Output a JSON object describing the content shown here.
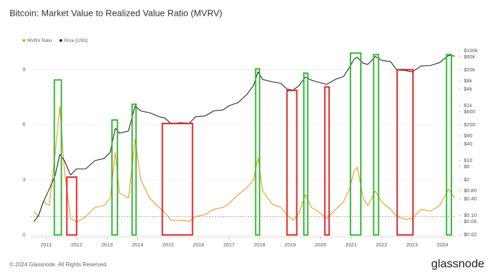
{
  "chart_data": {
    "type": "line",
    "title": "Bitcoin: Market Value to Realized Value Ratio (MVRV)",
    "x": [
      2010.6,
      2010.75,
      2010.9,
      2011.1,
      2011.3,
      2011.45,
      2011.6,
      2011.8,
      2012.0,
      2012.3,
      2012.6,
      2012.9,
      2013.1,
      2013.27,
      2013.4,
      2013.7,
      2013.92,
      2014.1,
      2014.4,
      2014.7,
      2014.9,
      2015.1,
      2015.4,
      2015.7,
      2015.9,
      2016.2,
      2016.5,
      2016.8,
      2017.0,
      2017.3,
      2017.6,
      2017.8,
      2017.95,
      2018.1,
      2018.4,
      2018.7,
      2018.9,
      2019.1,
      2019.3,
      2019.5,
      2019.7,
      2019.9,
      2020.2,
      2020.5,
      2020.75,
      2020.95,
      2021.1,
      2021.2,
      2021.4,
      2021.55,
      2021.8,
      2022.0,
      2022.3,
      2022.5,
      2022.8,
      2023.0,
      2023.3,
      2023.6,
      2023.9,
      2024.2,
      2024.4
    ],
    "series": [
      {
        "name": "MVRV Ratio",
        "color": "#f7931a",
        "axis": "y",
        "values": [
          1.3,
          1.0,
          1.8,
          1.6,
          4.5,
          7.0,
          3.5,
          0.9,
          0.7,
          1.0,
          1.5,
          1.6,
          2.0,
          4.5,
          2.3,
          2.0,
          5.2,
          3.0,
          2.0,
          1.5,
          1.2,
          0.8,
          0.8,
          0.75,
          1.0,
          1.1,
          1.4,
          1.5,
          1.7,
          2.2,
          2.6,
          3.0,
          4.2,
          2.4,
          1.7,
          1.5,
          1.1,
          0.8,
          1.2,
          2.2,
          1.5,
          1.3,
          0.9,
          1.4,
          1.8,
          2.5,
          3.5,
          3.7,
          2.0,
          1.6,
          2.4,
          1.8,
          1.4,
          1.0,
          0.85,
          0.9,
          1.4,
          1.3,
          1.6,
          2.5,
          2.0
        ]
      },
      {
        "name": "Price [USD]",
        "color": "#222222",
        "axis": "y2",
        "values": [
          0.06,
          0.1,
          0.3,
          0.9,
          3,
          17,
          10,
          3,
          5,
          5,
          10,
          12,
          20,
          150,
          100,
          120,
          1000,
          650,
          550,
          400,
          350,
          220,
          240,
          230,
          400,
          420,
          650,
          700,
          1000,
          1300,
          2700,
          5500,
          17000,
          9000,
          7500,
          6500,
          4000,
          3700,
          5500,
          11000,
          8500,
          7300,
          6000,
          9200,
          11500,
          25000,
          50000,
          58000,
          35000,
          32000,
          62000,
          45000,
          40000,
          20000,
          19000,
          17000,
          28000,
          29000,
          37000,
          68000,
          64000
        ]
      }
    ],
    "xlim": [
      2010.5,
      2024.45
    ],
    "xticks": [
      2011,
      2012,
      2013,
      2014,
      2015,
      2016,
      2017,
      2018,
      2019,
      2020,
      2021,
      2022,
      2023,
      2024
    ],
    "ylim": [
      -0.1,
      10.25
    ],
    "yticks": [
      0,
      3,
      6,
      9
    ],
    "y2lim": [
      0.0168,
      141000
    ],
    "y2log": true,
    "y2ticks": [
      {
        "value": 100000,
        "label": "$100k"
      },
      {
        "value": 60000,
        "label": "$60k"
      },
      {
        "value": 20000,
        "label": "$20k"
      },
      {
        "value": 8000,
        "label": "$8k"
      },
      {
        "value": 4000,
        "label": "$4k"
      },
      {
        "value": 1000,
        "label": "$1k"
      },
      {
        "value": 600,
        "label": "$600"
      },
      {
        "value": 200,
        "label": "$200"
      },
      {
        "value": 80,
        "label": "$80"
      },
      {
        "value": 40,
        "label": "$40"
      },
      {
        "value": 10,
        "label": "$10"
      },
      {
        "value": 6,
        "label": "$6"
      },
      {
        "value": 2,
        "label": "$2"
      },
      {
        "value": 0.8,
        "label": "$0.80"
      },
      {
        "value": 0.4,
        "label": "$0.40"
      },
      {
        "value": 0.1,
        "label": "$0.10"
      },
      {
        "value": 0.06,
        "label": "$0.06"
      },
      {
        "value": 0.02,
        "label": "$0.02"
      }
    ],
    "grid": true,
    "reference_line": 1,
    "highlights": [
      {
        "x": [
          2011.27,
          2011.5
        ],
        "y": [
          0,
          8.44
        ],
        "color": "#2eb82e"
      },
      {
        "x": [
          2011.68,
          2012.0
        ],
        "y": [
          0,
          3.15
        ],
        "color": "#e02020"
      },
      {
        "x": [
          2013.16,
          2013.34
        ],
        "y": [
          0,
          6.26
        ],
        "color": "#2eb82e"
      },
      {
        "x": [
          2013.82,
          2013.95
        ],
        "y": [
          0,
          7.12
        ],
        "color": "#2eb82e"
      },
      {
        "x": [
          2014.81,
          2015.8
        ],
        "y": [
          0,
          6.07
        ],
        "color": "#e02020"
      },
      {
        "x": [
          2017.87,
          2018.0
        ],
        "y": [
          0,
          9.04
        ],
        "color": "#2eb82e"
      },
      {
        "x": [
          2018.9,
          2019.22
        ],
        "y": [
          0,
          7.87
        ],
        "color": "#e02020"
      },
      {
        "x": [
          2019.45,
          2019.58
        ],
        "y": [
          0,
          8.81
        ],
        "color": "#2eb82e"
      },
      {
        "x": [
          2020.14,
          2020.28
        ],
        "y": [
          0,
          8.06
        ],
        "color": "#e02020"
      },
      {
        "x": [
          2020.98,
          2021.32
        ],
        "y": [
          0,
          9.9
        ],
        "color": "#2eb82e"
      },
      {
        "x": [
          2021.74,
          2021.9
        ],
        "y": [
          0,
          9.82
        ],
        "color": "#2eb82e"
      },
      {
        "x": [
          2022.51,
          2023.03
        ],
        "y": [
          0,
          9.0
        ],
        "color": "#e02020"
      },
      {
        "x": [
          2024.13,
          2024.29
        ],
        "y": [
          0,
          9.82
        ],
        "color": "#2eb82e"
      }
    ]
  },
  "footer": {
    "copyright": "© 2024 Glassnode. All Rights Reserved.",
    "brand": "glassnode"
  }
}
